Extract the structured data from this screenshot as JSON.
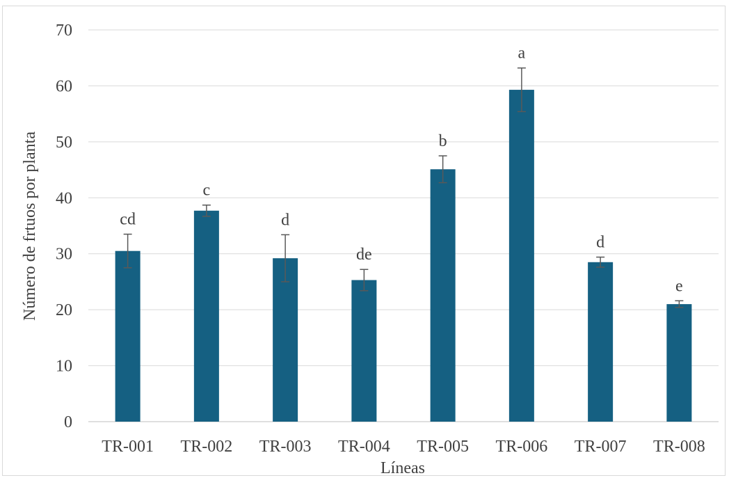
{
  "chart_data": {
    "type": "bar",
    "title": "",
    "xlabel": "Líneas",
    "ylabel": "Número de frtuos por planta",
    "ylim": [
      0,
      70
    ],
    "yticks": [
      0,
      10,
      20,
      30,
      40,
      50,
      60,
      70
    ],
    "ytick_labels": [
      "0",
      "10",
      "20",
      "30",
      "40",
      "50",
      "60",
      "70"
    ],
    "grid": true,
    "legend": "none",
    "bar_color": "#156082",
    "error_bar_color": "#595959",
    "categories": [
      "TR-001",
      "TR-002",
      "TR-003",
      "TR-004",
      "TR-005",
      "TR-006",
      "TR-007",
      "TR-008"
    ],
    "values": [
      30.5,
      37.7,
      29.2,
      25.3,
      45.1,
      59.3,
      28.5,
      21.0
    ],
    "errors": [
      3.0,
      1.0,
      4.2,
      1.9,
      2.4,
      3.9,
      0.9,
      0.6
    ],
    "significance_letters": [
      "cd",
      "c",
      "d",
      "de",
      "b",
      "a",
      "d",
      "e"
    ]
  }
}
